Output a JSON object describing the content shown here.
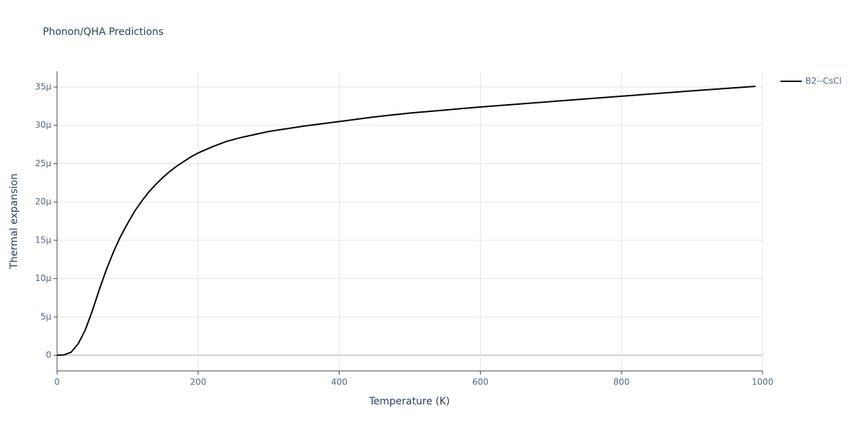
{
  "chart_data": {
    "type": "line",
    "title": "Phonon/QHA Predictions",
    "x_label": "Temperature (K)",
    "y_label": "Thermal expansion",
    "x": [
      0,
      10,
      20,
      30,
      40,
      50,
      60,
      70,
      80,
      90,
      100,
      110,
      120,
      130,
      140,
      150,
      160,
      170,
      180,
      190,
      200,
      220,
      240,
      260,
      280,
      300,
      350,
      400,
      450,
      500,
      600,
      700,
      800,
      900,
      990
    ],
    "series": [
      {
        "name": "B2--CsCl",
        "color": "#000000",
        "values": [
          0,
          5e-08,
          4e-07,
          1.5e-06,
          3.3e-06,
          5.8e-06,
          8.6e-06,
          1.12e-05,
          1.35e-05,
          1.55e-05,
          1.72e-05,
          1.88e-05,
          2.01e-05,
          2.13e-05,
          2.23e-05,
          2.32e-05,
          2.4e-05,
          2.47e-05,
          2.53e-05,
          2.59e-05,
          2.64e-05,
          2.72e-05,
          2.79e-05,
          2.84e-05,
          2.88e-05,
          2.92e-05,
          2.99e-05,
          3.05e-05,
          3.11e-05,
          3.16e-05,
          3.24e-05,
          3.31e-05,
          3.38e-05,
          3.45e-05,
          3.51e-05
        ]
      }
    ],
    "xlim": [
      0,
      1000
    ],
    "ylim": [
      -2.05e-06,
      3.705e-05
    ],
    "xticks": [
      0,
      200,
      400,
      600,
      800,
      1000
    ],
    "yticks": [
      0,
      {
        "value": 5e-06,
        "label": "5µ"
      },
      {
        "value": 1e-05,
        "label": "10µ"
      },
      {
        "value": 1.5e-05,
        "label": "15µ"
      },
      {
        "value": 2e-05,
        "label": "20µ"
      },
      {
        "value": 2.5e-05,
        "label": "25µ"
      },
      {
        "value": 3e-05,
        "label": "30µ"
      },
      {
        "value": 3.5e-05,
        "label": "35µ"
      }
    ],
    "grid": true,
    "legend": "top-right"
  }
}
